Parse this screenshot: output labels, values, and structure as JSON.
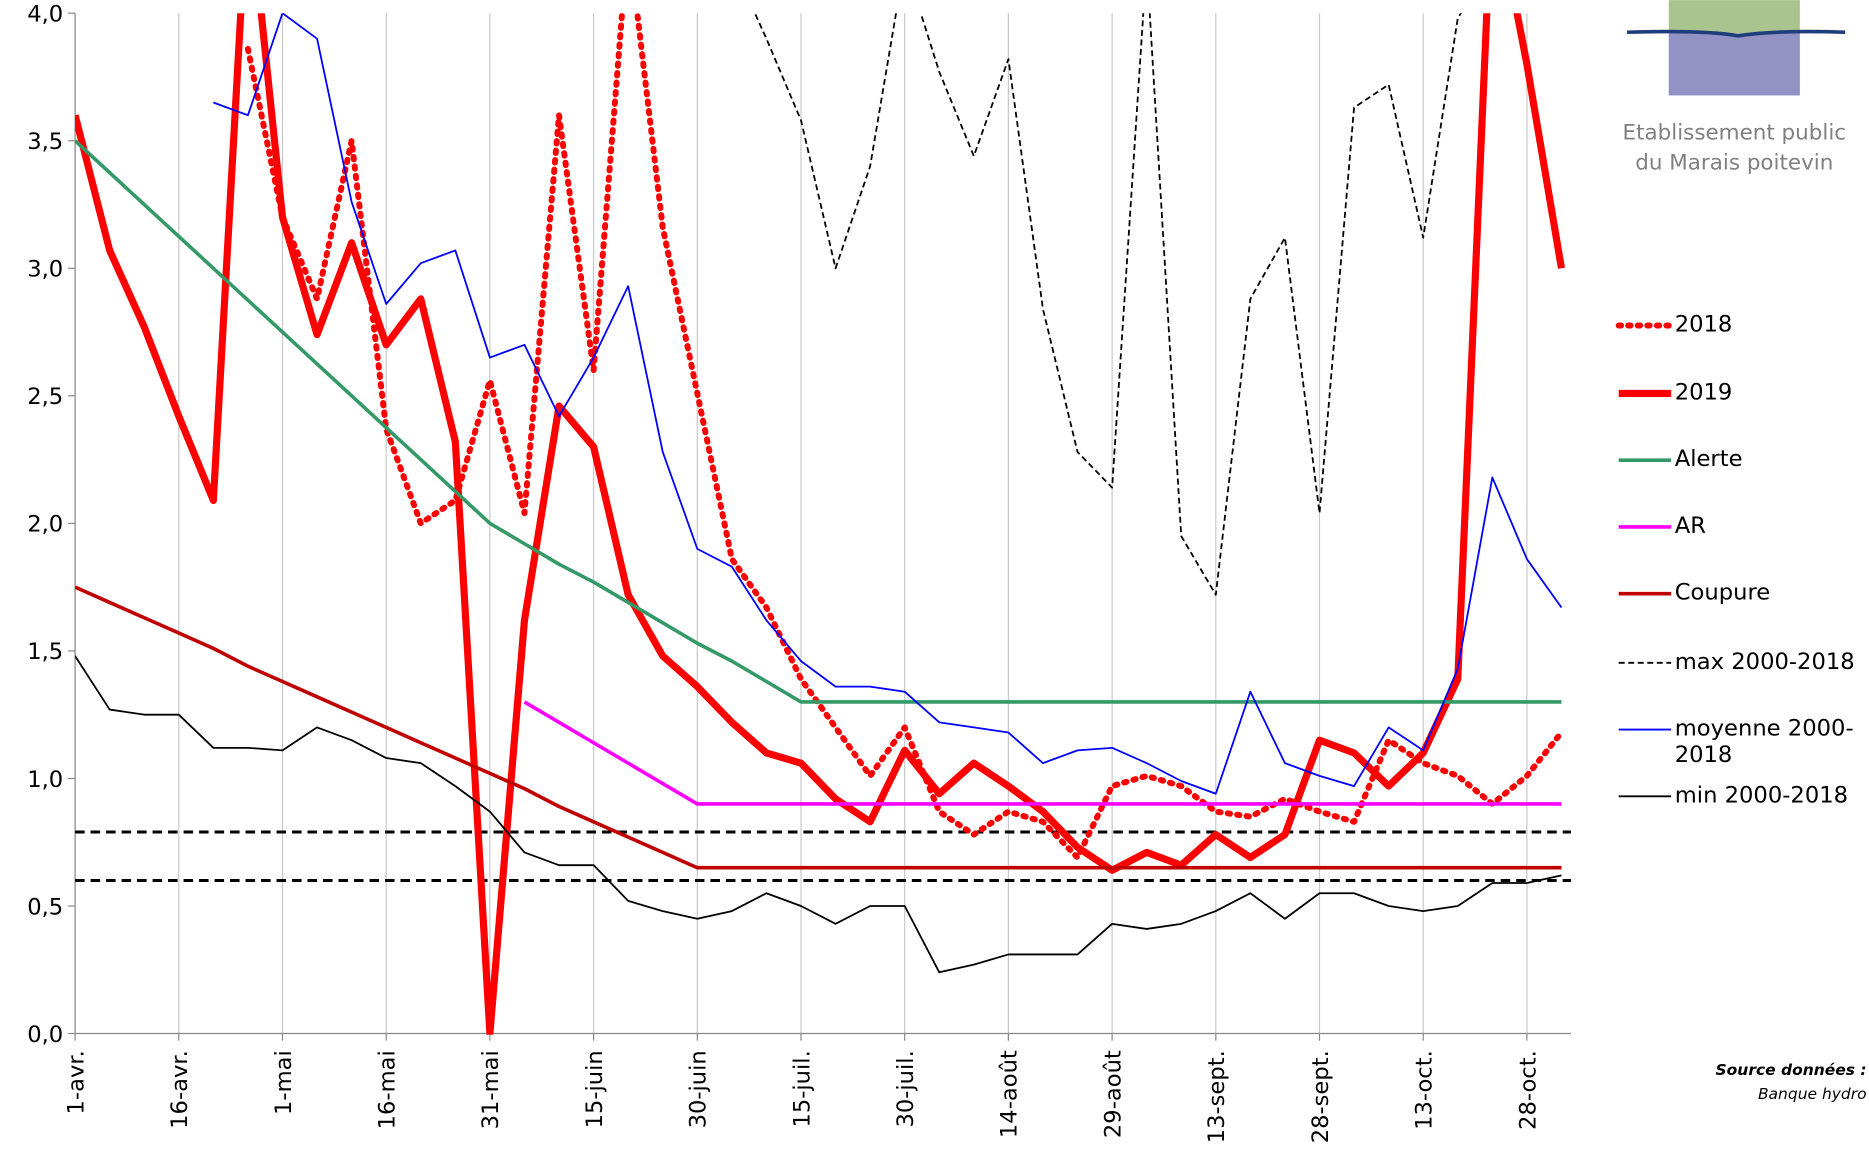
{
  "chart_data": {
    "type": "line",
    "categories": [
      "1-avr.",
      null,
      null,
      "16-avr.",
      null,
      null,
      "1-mai",
      null,
      null,
      "16-mai",
      null,
      null,
      "31-mai",
      null,
      null,
      "15-juin",
      null,
      null,
      "30-juin",
      null,
      null,
      "15-juil.",
      null,
      null,
      "30-juil.",
      null,
      null,
      "14-août",
      null,
      null,
      "29-août",
      null,
      null,
      "13-sept.",
      null,
      null,
      "28-sept.",
      null,
      null,
      "13-oct.",
      null,
      null,
      "28-oct.",
      null
    ],
    "ylim": [
      0,
      4
    ],
    "yticks": [
      {
        "value": 0,
        "label": "0,0"
      },
      {
        "value": 0.5,
        "label": "0,5"
      },
      {
        "value": 1,
        "label": "1,0"
      },
      {
        "value": 1.5,
        "label": "1,5"
      },
      {
        "value": 2,
        "label": "2,0"
      },
      {
        "value": 2.5,
        "label": "2,5"
      },
      {
        "value": 3,
        "label": "3,0"
      },
      {
        "value": 3.5,
        "label": "3,5"
      },
      {
        "value": 4,
        "label": "4,0"
      }
    ],
    "xgrid": true,
    "hlines": [
      0.79,
      0.6
    ],
    "hline_color": "#000000",
    "series": [
      {
        "name": "2018",
        "color": "#ff0000",
        "style": "dotted",
        "width": 5,
        "values": [
          null,
          null,
          null,
          null,
          null,
          3.86,
          3.2,
          2.88,
          3.5,
          2.37,
          2.0,
          2.09,
          2.56,
          2.04,
          3.6,
          2.6,
          4.3,
          3.16,
          2.51,
          1.86,
          1.67,
          1.39,
          1.2,
          1.01,
          1.2,
          0.87,
          0.78,
          0.87,
          0.83,
          0.69,
          0.97,
          1.01,
          0.97,
          0.87,
          0.85,
          0.92,
          0.87,
          0.83,
          1.15,
          1.06,
          1.01,
          0.9,
          1.01,
          1.18
        ]
      },
      {
        "name": "2019",
        "color": "#ff0000",
        "style": "solid",
        "width": 6,
        "values": [
          3.6,
          3.07,
          2.77,
          2.42,
          2.09,
          4.5,
          3.2,
          2.74,
          3.1,
          2.7,
          2.88,
          2.32,
          0,
          1.62,
          2.46,
          2.3,
          1.72,
          1.48,
          1.36,
          1.22,
          1.1,
          1.06,
          0.92,
          0.83,
          1.11,
          0.94,
          1.06,
          0.97,
          0.87,
          0.73,
          0.64,
          0.71,
          0.66,
          0.78,
          0.69,
          0.78,
          1.15,
          1.1,
          0.97,
          1.1,
          1.39,
          4.5,
          3.8,
          3.0
        ]
      },
      {
        "name": "Alerte",
        "color": "#339966",
        "style": "solid",
        "width": 3,
        "values": [
          3.5,
          3.375,
          3.25,
          3.125,
          3.0,
          2.875,
          2.75,
          2.625,
          2.5,
          2.375,
          2.25,
          2.125,
          2.0,
          1.92,
          1.84,
          1.77,
          1.69,
          1.61,
          1.53,
          1.46,
          1.38,
          1.3,
          1.3,
          1.3,
          1.3,
          1.3,
          1.3,
          1.3,
          1.3,
          1.3,
          1.3,
          1.3,
          1.3,
          1.3,
          1.3,
          1.3,
          1.3,
          1.3,
          1.3,
          1.3,
          1.3,
          1.3,
          1.3,
          1.3
        ]
      },
      {
        "name": "AR",
        "color": "#ff00ff",
        "style": "solid",
        "width": 3,
        "values": [
          null,
          null,
          null,
          null,
          null,
          null,
          null,
          null,
          null,
          null,
          null,
          null,
          null,
          1.3,
          1.22,
          1.14,
          1.06,
          0.98,
          0.9,
          0.9,
          0.9,
          0.9,
          0.9,
          0.9,
          0.9,
          0.9,
          0.9,
          0.9,
          0.9,
          0.9,
          0.9,
          0.9,
          0.9,
          0.9,
          0.9,
          0.9,
          0.9,
          0.9,
          0.9,
          0.9,
          0.9,
          0.9,
          0.9,
          0.9
        ]
      },
      {
        "name": "Coupure",
        "color": "#c00000",
        "style": "solid",
        "width": 3,
        "values": [
          1.75,
          1.69,
          1.63,
          1.57,
          1.51,
          1.44,
          1.38,
          1.32,
          1.26,
          1.2,
          1.14,
          1.08,
          1.02,
          0.96,
          0.89,
          0.83,
          0.77,
          0.71,
          0.65,
          0.65,
          0.65,
          0.65,
          0.65,
          0.65,
          0.65,
          0.65,
          0.65,
          0.65,
          0.65,
          0.65,
          0.65,
          0.65,
          0.65,
          0.65,
          0.65,
          0.65,
          0.65,
          0.65,
          0.65,
          0.65,
          0.65,
          0.65,
          0.65,
          0.65
        ]
      },
      {
        "name": "max 2000-2018",
        "color": "#000000",
        "style": "dashed",
        "width": 1.5,
        "values": [
          null,
          null,
          null,
          null,
          null,
          null,
          null,
          null,
          null,
          null,
          null,
          null,
          null,
          null,
          null,
          null,
          null,
          null,
          null,
          4.2,
          3.9,
          3.58,
          3.0,
          3.4,
          4.2,
          3.77,
          3.44,
          3.82,
          2.84,
          2.28,
          2.14,
          4.2,
          1.95,
          1.72,
          2.88,
          3.12,
          2.04,
          3.63,
          3.72,
          3.12,
          3.98,
          4.2,
          4.2,
          4.2
        ]
      },
      {
        "name": "moyenne 2000-2018",
        "color": "#0000ff",
        "style": "solid",
        "width": 1.5,
        "values": [
          null,
          null,
          null,
          null,
          3.65,
          3.6,
          4.0,
          3.9,
          3.26,
          2.86,
          3.02,
          3.07,
          2.65,
          2.7,
          2.42,
          2.65,
          2.93,
          2.28,
          1.9,
          1.83,
          1.62,
          1.46,
          1.36,
          1.36,
          1.34,
          1.22,
          1.2,
          1.18,
          1.06,
          1.11,
          1.12,
          1.06,
          0.99,
          0.94,
          1.34,
          1.06,
          1.01,
          0.97,
          1.2,
          1.11,
          1.43,
          2.18,
          1.86,
          1.67
        ]
      },
      {
        "name": "min 2000-2018",
        "color": "#000000",
        "style": "solid",
        "width": 1.5,
        "values": [
          1.48,
          1.27,
          1.25,
          1.25,
          1.12,
          1.12,
          1.11,
          1.2,
          1.15,
          1.08,
          1.06,
          0.97,
          0.87,
          0.71,
          0.66,
          0.66,
          0.52,
          0.48,
          0.45,
          0.48,
          0.55,
          0.5,
          0.43,
          0.5,
          0.5,
          0.24,
          0.27,
          0.31,
          0.31,
          0.31,
          0.43,
          0.41,
          0.43,
          0.48,
          0.55,
          0.45,
          0.55,
          0.55,
          0.5,
          0.48,
          0.5,
          0.59,
          0.59,
          0.62
        ]
      }
    ]
  },
  "logo": {
    "lines": [
      "Etablissement public",
      "du Marais poitevin"
    ]
  },
  "source": {
    "label": "Source données :",
    "name": "Banque hydro"
  }
}
